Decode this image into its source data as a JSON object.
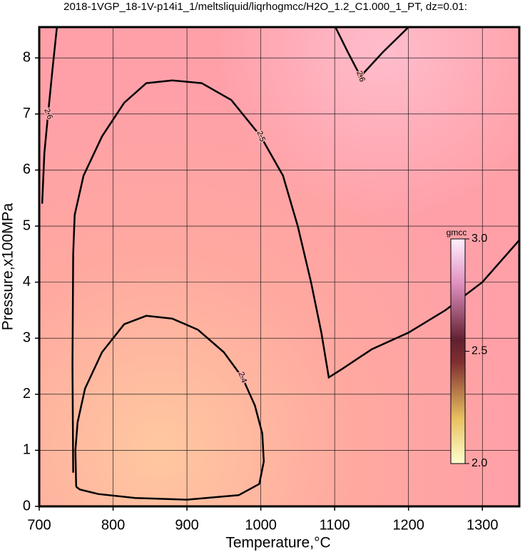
{
  "chart_data": {
    "type": "contour",
    "title": "2018-1VGP_18-1V-p14i1_1/meltsliquid/liqrhogmcc/H2O_1.2_C1.000_1_PT, dz=0.01:",
    "x_label": "Temperature,°C",
    "y_label": "Pressure,x100MPa",
    "xlim": [
      700,
      1350
    ],
    "ylim": [
      0,
      8.55
    ],
    "xticks": [
      700,
      800,
      900,
      1000,
      1100,
      1200,
      1300
    ],
    "yticks": [
      0,
      1,
      2,
      3,
      4,
      5,
      6,
      7,
      8
    ],
    "grid": true,
    "contours": [
      {
        "level": 2.4,
        "x": [
          750,
          749,
          752,
          762,
          785,
          815,
          845,
          880,
          915,
          950,
          975,
          992,
          1002,
          1004,
          998,
          970,
          900,
          830,
          780,
          755,
          750
        ],
        "y": [
          0.35,
          1.0,
          1.5,
          2.1,
          2.75,
          3.25,
          3.4,
          3.35,
          3.15,
          2.75,
          2.3,
          1.8,
          1.3,
          0.8,
          0.4,
          0.2,
          0.12,
          0.15,
          0.22,
          0.3,
          0.35
        ]
      },
      {
        "level": 2.5,
        "x": [
          746,
          745,
          746,
          748,
          760,
          785,
          815,
          845,
          880,
          920,
          960,
          1000,
          1030,
          1050,
          1068,
          1082,
          1092,
          1110,
          1150,
          1200,
          1250,
          1300,
          1350
        ],
        "y": [
          0.6,
          2.5,
          4.5,
          5.2,
          5.9,
          6.6,
          7.2,
          7.55,
          7.6,
          7.55,
          7.25,
          6.6,
          5.9,
          5.0,
          4.0,
          3.1,
          2.3,
          2.45,
          2.8,
          3.1,
          3.5,
          4.0,
          4.75
        ]
      },
      {
        "level": 2.6,
        "x": [
          1101,
          1118,
          1135,
          1165,
          1200
        ],
        "y": [
          8.55,
          8.1,
          7.67,
          8.1,
          8.55
        ]
      },
      {
        "level": 2.6,
        "x": [
          704,
          707,
          712,
          718,
          724
        ],
        "y": [
          5.4,
          6.3,
          7.0,
          7.8,
          8.55
        ]
      }
    ],
    "colorbar": {
      "label": "gmcc",
      "lim": [
        2,
        3
      ],
      "ticks": [
        {
          "value": 2,
          "label": "2.0"
        },
        2.5,
        {
          "value": 3,
          "label": "3.0"
        }
      ]
    }
  }
}
